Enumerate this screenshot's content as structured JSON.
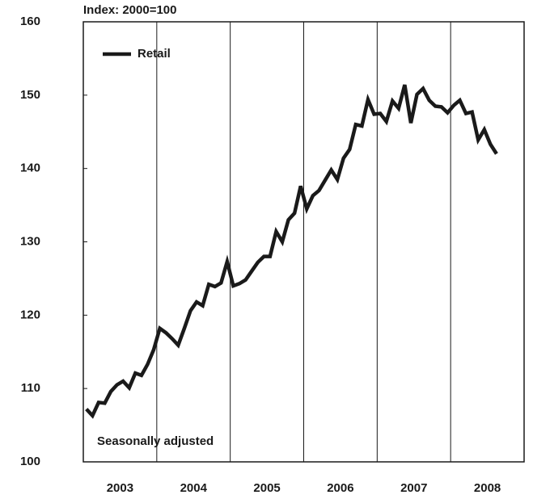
{
  "chart_data": {
    "type": "line",
    "y_label": "Index: 2000=100",
    "x_labels": [
      "2003",
      "2004",
      "2005",
      "2006",
      "2007",
      "2008"
    ],
    "series": [
      {
        "name": "Retail",
        "color": "#1a1a1a",
        "values": [
          107.2,
          106.3,
          108.1,
          108.0,
          109.6,
          110.5,
          111.0,
          110.1,
          112.1,
          111.8,
          113.3,
          115.3,
          118.2,
          117.6,
          116.8,
          115.9,
          118.2,
          120.6,
          121.8,
          121.3,
          124.2,
          123.9,
          124.4,
          127.3,
          124.0,
          124.3,
          124.8,
          126.0,
          127.2,
          128.0,
          128.0,
          131.4,
          130.0,
          133.0,
          133.9,
          137.6,
          134.5,
          136.3,
          137.0,
          138.4,
          139.8,
          138.5,
          141.4,
          142.6,
          146.0,
          145.8,
          149.4,
          147.4,
          147.5,
          146.4,
          149.2,
          148.2,
          151.4,
          146.2,
          150.1,
          150.9,
          149.3,
          148.5,
          148.4,
          147.6,
          148.6,
          149.3,
          147.5,
          147.7,
          143.9,
          145.3,
          143.3,
          142.0
        ]
      }
    ],
    "ylim": [
      100,
      160
    ],
    "yticks": [
      100,
      110,
      120,
      130,
      140,
      150,
      160
    ],
    "annotation": "Seasonally adjusted",
    "legend": "upper left"
  }
}
